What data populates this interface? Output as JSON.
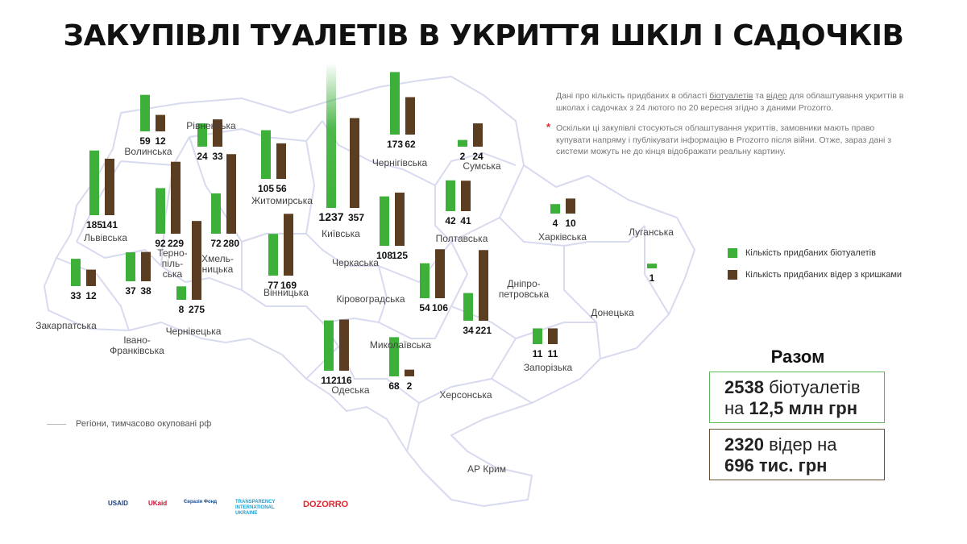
{
  "title": "ЗАКУПІВЛІ ТУАЛЕТІВ В УКРИТТЯ ШКІЛ І САДОЧКІВ",
  "note1": {
    "before": "Дані про кількість придбаних в області ",
    "link1": "біотуалетів",
    "mid": " та ",
    "link2": "відер",
    "after": " для облаштування укриттів в школах і садочках з 24 лютого по 20 вересня згідно з даними Prozorro."
  },
  "note2": "Оскільки ці закупівлі стосуються облаштування укриттів, замовники мають право купувати напряму і публікувати інформацію в Prozorro після війни. Отже, зараз дані з системи можуть не до кінця відображати реальну картину.",
  "legend": {
    "toilets": "Кількість придбаних біотуалетів",
    "buckets": "Кількість придбаних відер з кришками"
  },
  "occupied_label": "Регіони, тимчасово окуповані рф",
  "totals": {
    "heading": "Разом",
    "toilets_count": "2538",
    "toilets_word": "біотуалетів",
    "toilets_on": "на",
    "toilets_sum": "12,5 млн грн",
    "buckets_count": "2320",
    "buckets_word": "відер на",
    "buckets_sum": "696 тис. грн"
  },
  "logos": [
    "USAID",
    "UKaid",
    "Євразія Фонд",
    "TRANSPARENCY INTERNATIONAL UKRAINE",
    "DOZORRO"
  ],
  "colors": {
    "toilets": "#3db03a",
    "buckets": "#5b3d22",
    "border": "#d8daf0",
    "note_star": "#e0262f"
  },
  "chart_data": {
    "type": "bar",
    "series": [
      {
        "name": "Кількість придбаних біотуалетів",
        "key": "toilets"
      },
      {
        "name": "Кількість придбаних відер з кришками",
        "key": "buckets"
      }
    ],
    "regions": [
      {
        "name": "Волинська",
        "toilets": 59,
        "buckets": 12
      },
      {
        "name": "Рівненська",
        "toilets": 24,
        "buckets": 33
      },
      {
        "name": "Львівська",
        "toilets": 185,
        "buckets": 141
      },
      {
        "name": "Тернопільська",
        "toilets": 92,
        "buckets": 229
      },
      {
        "name": "Хмельницька",
        "toilets": 72,
        "buckets": 280
      },
      {
        "name": "Житомирська",
        "toilets": 105,
        "buckets": 56
      },
      {
        "name": "Київська",
        "toilets": 1237,
        "buckets": 357
      },
      {
        "name": "Чернігівська",
        "toilets": 173,
        "buckets": 62
      },
      {
        "name": "Сумська",
        "toilets": 2,
        "buckets": 24
      },
      {
        "name": "Полтавська",
        "toilets": 42,
        "buckets": 41
      },
      {
        "name": "Харківська",
        "toilets": 4,
        "buckets": 10
      },
      {
        "name": "Луганська",
        "toilets": 1,
        "buckets": null
      },
      {
        "name": "Закарпатська",
        "toilets": 33,
        "buckets": 12
      },
      {
        "name": "Івано-Франківська",
        "toilets": 37,
        "buckets": 38
      },
      {
        "name": "Чернівецька",
        "toilets": 8,
        "buckets": 275
      },
      {
        "name": "Вінницька",
        "toilets": 77,
        "buckets": 169
      },
      {
        "name": "Черкаська",
        "toilets": 108,
        "buckets": 125
      },
      {
        "name": "Кіровоградська",
        "toilets": 54,
        "buckets": 106
      },
      {
        "name": "Дніпропетровська",
        "toilets": 34,
        "buckets": 221
      },
      {
        "name": "Донецька",
        "toilets": null,
        "buckets": null
      },
      {
        "name": "Запорізька",
        "toilets": 11,
        "buckets": 11
      },
      {
        "name": "Миколаївська",
        "toilets": 68,
        "buckets": 2
      },
      {
        "name": "Одеська",
        "toilets": 112,
        "buckets": 116
      },
      {
        "name": "Херсонська",
        "toilets": null,
        "buckets": null
      },
      {
        "name": "АР Крим",
        "toilets": null,
        "buckets": null
      }
    ],
    "region_labels": {
      "Волинська": "Волинська",
      "Рівненська": "Рівненська",
      "Львівська": "Львівська",
      "Тернопільська": "Терно-\nпіль-\nська",
      "Хмельницька": "Хмель-\nницька",
      "Житомирська": "Житомирська",
      "Київська": "Київська",
      "Чернігівська": "Чернігівська",
      "Сумська": "Сумська",
      "Полтавська": "Полтавська",
      "Харківська": "Харківська",
      "Луганська": "Луганська",
      "Закарпатська": "Закарпатська",
      "Івано-Франківська": "Івано-\nФранківська",
      "Чернівецька": "Чернівецька",
      "Вінницька": "Вінницька",
      "Черкаська": "Черкаська",
      "Кіровоградська": "Кіровоградська",
      "Дніпропетровська": "Дніпро-\nпетровська",
      "Донецька": "Донецька",
      "Запорізька": "Запорізька",
      "Миколаївська": "Миколаївська",
      "Одеська": "Одеська",
      "Херсонська": "Херсонська",
      "АР Крим": "АР Крим"
    }
  }
}
